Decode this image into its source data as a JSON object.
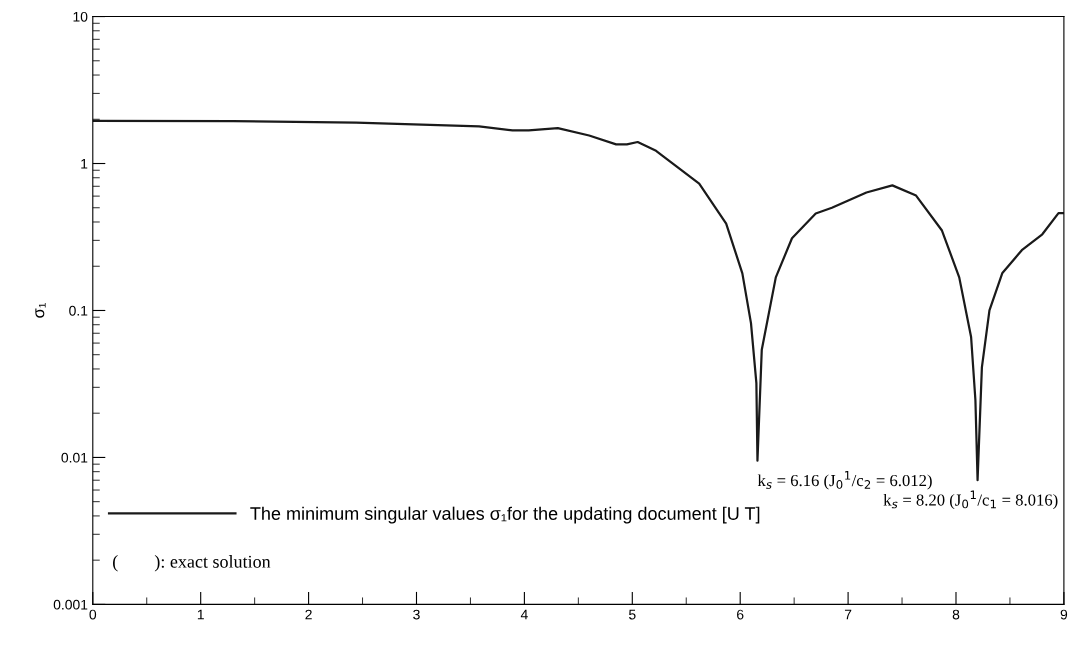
{
  "chart_data": {
    "type": "line",
    "ylabel": "σ₁",
    "log": "y",
    "xlim": [
      0,
      9
    ],
    "xticks": [
      0,
      1,
      2,
      3,
      4,
      5,
      6,
      7,
      8,
      9
    ],
    "ylim": [
      0.001,
      10
    ],
    "yticks": [
      0.001,
      0.01,
      0.1,
      1,
      10
    ],
    "grid": false,
    "legend": "bottom left",
    "marker": "none",
    "line_style": "solid",
    "series": [
      {
        "name": "The minimum singular values σ₁for the updating document [U T]",
        "color": "#1a1a1a",
        "x": [
          0,
          1.3,
          2.44,
          3.58,
          3.89,
          4.04,
          4.31,
          4.6,
          4.85,
          4.95,
          5.05,
          5.22,
          5.62,
          5.87,
          6.02,
          6.1,
          6.15,
          6.16,
          6.2,
          6.33,
          6.48,
          6.7,
          6.85,
          7.17,
          7.41,
          7.63,
          7.87,
          8.03,
          8.14,
          8.18,
          8.2,
          8.24,
          8.31,
          8.43,
          8.61,
          8.8,
          8.95,
          9
        ],
        "values": [
          1.95,
          1.94,
          1.9,
          1.79,
          1.68,
          1.68,
          1.74,
          1.55,
          1.35,
          1.35,
          1.4,
          1.22,
          0.73,
          0.39,
          0.179,
          0.082,
          0.032,
          0.0095,
          0.054,
          0.168,
          0.31,
          0.457,
          0.5,
          0.635,
          0.71,
          0.605,
          0.35,
          0.168,
          0.066,
          0.0245,
          0.007,
          0.041,
          0.1,
          0.18,
          0.257,
          0.33,
          0.46,
          0.46
        ]
      }
    ],
    "annotations": [
      {
        "text": "k$_{s}$ = 6.16 (J$_{0}$$^{1}$/c$_{2}$ = 6.012)",
        "x": 6.16,
        "y": 0.0095
      },
      {
        "text": "k$_{s}$ = 8.20 (J$_{0}$$^{1}$/c$_{1}$ = 8.016)",
        "x": 8.2,
        "y": 0.007
      },
      "(        ): exact solution"
    ]
  }
}
